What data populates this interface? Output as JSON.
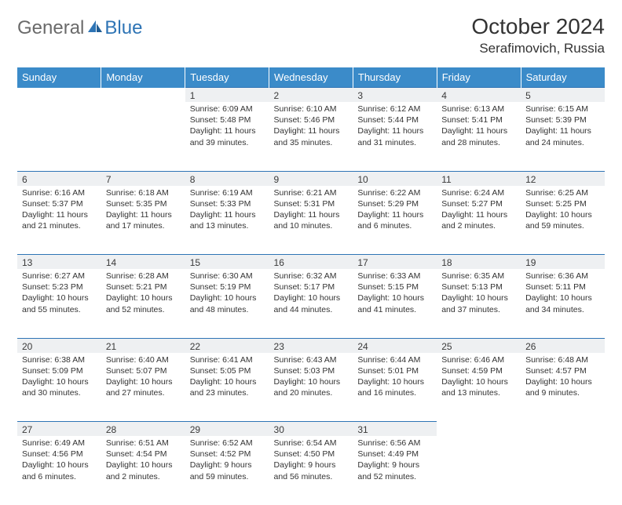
{
  "brand": {
    "part1": "General",
    "part2": "Blue"
  },
  "title": "October 2024",
  "location": "Serafimovich, Russia",
  "colors": {
    "header_bg": "#3b8bc9",
    "header_text": "#ffffff",
    "brand_gray": "#6a6a6a",
    "brand_blue": "#2e74b5",
    "daynum_bg": "#eef0f2",
    "border_top": "#2e74b5"
  },
  "weekdays": [
    "Sunday",
    "Monday",
    "Tuesday",
    "Wednesday",
    "Thursday",
    "Friday",
    "Saturday"
  ],
  "weeks": [
    [
      null,
      null,
      {
        "d": "1",
        "sr": "Sunrise: 6:09 AM",
        "ss": "Sunset: 5:48 PM",
        "dl1": "Daylight: 11 hours",
        "dl2": "and 39 minutes."
      },
      {
        "d": "2",
        "sr": "Sunrise: 6:10 AM",
        "ss": "Sunset: 5:46 PM",
        "dl1": "Daylight: 11 hours",
        "dl2": "and 35 minutes."
      },
      {
        "d": "3",
        "sr": "Sunrise: 6:12 AM",
        "ss": "Sunset: 5:44 PM",
        "dl1": "Daylight: 11 hours",
        "dl2": "and 31 minutes."
      },
      {
        "d": "4",
        "sr": "Sunrise: 6:13 AM",
        "ss": "Sunset: 5:41 PM",
        "dl1": "Daylight: 11 hours",
        "dl2": "and 28 minutes."
      },
      {
        "d": "5",
        "sr": "Sunrise: 6:15 AM",
        "ss": "Sunset: 5:39 PM",
        "dl1": "Daylight: 11 hours",
        "dl2": "and 24 minutes."
      }
    ],
    [
      {
        "d": "6",
        "sr": "Sunrise: 6:16 AM",
        "ss": "Sunset: 5:37 PM",
        "dl1": "Daylight: 11 hours",
        "dl2": "and 21 minutes."
      },
      {
        "d": "7",
        "sr": "Sunrise: 6:18 AM",
        "ss": "Sunset: 5:35 PM",
        "dl1": "Daylight: 11 hours",
        "dl2": "and 17 minutes."
      },
      {
        "d": "8",
        "sr": "Sunrise: 6:19 AM",
        "ss": "Sunset: 5:33 PM",
        "dl1": "Daylight: 11 hours",
        "dl2": "and 13 minutes."
      },
      {
        "d": "9",
        "sr": "Sunrise: 6:21 AM",
        "ss": "Sunset: 5:31 PM",
        "dl1": "Daylight: 11 hours",
        "dl2": "and 10 minutes."
      },
      {
        "d": "10",
        "sr": "Sunrise: 6:22 AM",
        "ss": "Sunset: 5:29 PM",
        "dl1": "Daylight: 11 hours",
        "dl2": "and 6 minutes."
      },
      {
        "d": "11",
        "sr": "Sunrise: 6:24 AM",
        "ss": "Sunset: 5:27 PM",
        "dl1": "Daylight: 11 hours",
        "dl2": "and 2 minutes."
      },
      {
        "d": "12",
        "sr": "Sunrise: 6:25 AM",
        "ss": "Sunset: 5:25 PM",
        "dl1": "Daylight: 10 hours",
        "dl2": "and 59 minutes."
      }
    ],
    [
      {
        "d": "13",
        "sr": "Sunrise: 6:27 AM",
        "ss": "Sunset: 5:23 PM",
        "dl1": "Daylight: 10 hours",
        "dl2": "and 55 minutes."
      },
      {
        "d": "14",
        "sr": "Sunrise: 6:28 AM",
        "ss": "Sunset: 5:21 PM",
        "dl1": "Daylight: 10 hours",
        "dl2": "and 52 minutes."
      },
      {
        "d": "15",
        "sr": "Sunrise: 6:30 AM",
        "ss": "Sunset: 5:19 PM",
        "dl1": "Daylight: 10 hours",
        "dl2": "and 48 minutes."
      },
      {
        "d": "16",
        "sr": "Sunrise: 6:32 AM",
        "ss": "Sunset: 5:17 PM",
        "dl1": "Daylight: 10 hours",
        "dl2": "and 44 minutes."
      },
      {
        "d": "17",
        "sr": "Sunrise: 6:33 AM",
        "ss": "Sunset: 5:15 PM",
        "dl1": "Daylight: 10 hours",
        "dl2": "and 41 minutes."
      },
      {
        "d": "18",
        "sr": "Sunrise: 6:35 AM",
        "ss": "Sunset: 5:13 PM",
        "dl1": "Daylight: 10 hours",
        "dl2": "and 37 minutes."
      },
      {
        "d": "19",
        "sr": "Sunrise: 6:36 AM",
        "ss": "Sunset: 5:11 PM",
        "dl1": "Daylight: 10 hours",
        "dl2": "and 34 minutes."
      }
    ],
    [
      {
        "d": "20",
        "sr": "Sunrise: 6:38 AM",
        "ss": "Sunset: 5:09 PM",
        "dl1": "Daylight: 10 hours",
        "dl2": "and 30 minutes."
      },
      {
        "d": "21",
        "sr": "Sunrise: 6:40 AM",
        "ss": "Sunset: 5:07 PM",
        "dl1": "Daylight: 10 hours",
        "dl2": "and 27 minutes."
      },
      {
        "d": "22",
        "sr": "Sunrise: 6:41 AM",
        "ss": "Sunset: 5:05 PM",
        "dl1": "Daylight: 10 hours",
        "dl2": "and 23 minutes."
      },
      {
        "d": "23",
        "sr": "Sunrise: 6:43 AM",
        "ss": "Sunset: 5:03 PM",
        "dl1": "Daylight: 10 hours",
        "dl2": "and 20 minutes."
      },
      {
        "d": "24",
        "sr": "Sunrise: 6:44 AM",
        "ss": "Sunset: 5:01 PM",
        "dl1": "Daylight: 10 hours",
        "dl2": "and 16 minutes."
      },
      {
        "d": "25",
        "sr": "Sunrise: 6:46 AM",
        "ss": "Sunset: 4:59 PM",
        "dl1": "Daylight: 10 hours",
        "dl2": "and 13 minutes."
      },
      {
        "d": "26",
        "sr": "Sunrise: 6:48 AM",
        "ss": "Sunset: 4:57 PM",
        "dl1": "Daylight: 10 hours",
        "dl2": "and 9 minutes."
      }
    ],
    [
      {
        "d": "27",
        "sr": "Sunrise: 6:49 AM",
        "ss": "Sunset: 4:56 PM",
        "dl1": "Daylight: 10 hours",
        "dl2": "and 6 minutes."
      },
      {
        "d": "28",
        "sr": "Sunrise: 6:51 AM",
        "ss": "Sunset: 4:54 PM",
        "dl1": "Daylight: 10 hours",
        "dl2": "and 2 minutes."
      },
      {
        "d": "29",
        "sr": "Sunrise: 6:52 AM",
        "ss": "Sunset: 4:52 PM",
        "dl1": "Daylight: 9 hours",
        "dl2": "and 59 minutes."
      },
      {
        "d": "30",
        "sr": "Sunrise: 6:54 AM",
        "ss": "Sunset: 4:50 PM",
        "dl1": "Daylight: 9 hours",
        "dl2": "and 56 minutes."
      },
      {
        "d": "31",
        "sr": "Sunrise: 6:56 AM",
        "ss": "Sunset: 4:49 PM",
        "dl1": "Daylight: 9 hours",
        "dl2": "and 52 minutes."
      },
      null,
      null
    ]
  ]
}
